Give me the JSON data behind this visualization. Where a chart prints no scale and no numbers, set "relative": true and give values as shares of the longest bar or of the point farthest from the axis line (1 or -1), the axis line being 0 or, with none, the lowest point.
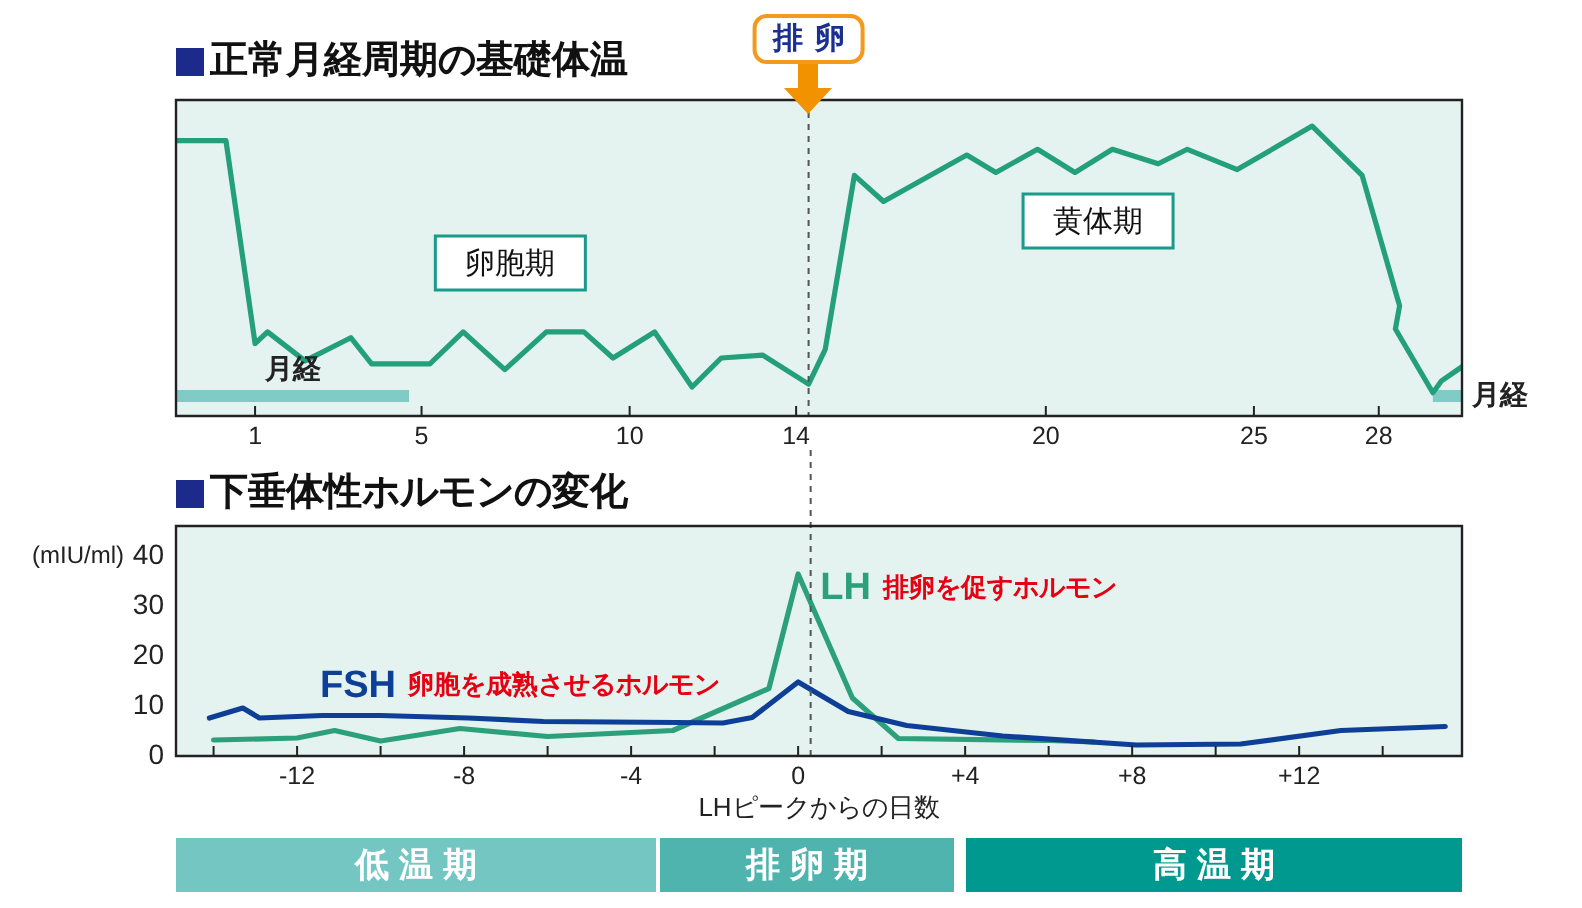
{
  "chart_data": [
    {
      "type": "line",
      "title": "正常月経周期の基礎体温",
      "relative": true,
      "x": [
        -0.9,
        0.3,
        1,
        1.3,
        2.2,
        3.3,
        3.8,
        5.2,
        6,
        7,
        8,
        8.9,
        9.6,
        10.6,
        11.5,
        12.2,
        13.2,
        14.3,
        14.7,
        15.4,
        16.1,
        18.1,
        18.8,
        19.8,
        20.7,
        21.6,
        22.7,
        23.4,
        24.6,
        26.4,
        27.6,
        28.5,
        28.4,
        29.3,
        29.5,
        30
      ],
      "series": [
        {
          "color": "#23a07a",
          "values": [
            0.95,
            0.95,
            0.25,
            0.29,
            0.19,
            0.27,
            0.18,
            0.18,
            0.29,
            0.16,
            0.29,
            0.29,
            0.2,
            0.29,
            0.1,
            0.2,
            0.21,
            0.11,
            0.23,
            0.83,
            0.74,
            0.9,
            0.84,
            0.92,
            0.84,
            0.92,
            0.87,
            0.92,
            0.85,
            1,
            0.83,
            0.38,
            0.3,
            0.08,
            0.12,
            0.17
          ]
        }
      ],
      "xlim": [
        -0.9,
        30
      ],
      "xticks": [
        1,
        5,
        10,
        14,
        20,
        25,
        28
      ],
      "ref_lines": [
        {
          "axis": "x",
          "value": 14.3,
          "label": "排卵"
        }
      ],
      "bands": [
        {
          "axis": "x",
          "from": -0.9,
          "to": 4.7,
          "label": "月経",
          "color": "#80cbc6"
        },
        {
          "axis": "x",
          "from": 29.3,
          "to": 30,
          "label": "月経",
          "color": "#80cbc6"
        }
      ],
      "annotations": [
        "卵胞期",
        "黄体期"
      ]
    },
    {
      "type": "line",
      "title": "下垂体性ホルモンの変化",
      "xlabel": "LHピークからの日数",
      "ylabel": "(mIU/ml)",
      "series": [
        {
          "name": "FSH",
          "color": "#0e3f96",
          "x": [
            -14.1,
            -13.3,
            -12.9,
            -11.4,
            -10,
            -7.9,
            -6.1,
            -2.9,
            -1.8,
            -1.1,
            0,
            1.2,
            2.6,
            4.9,
            8.1,
            10.6,
            13,
            15.5
          ],
          "values": [
            7.6,
            9.6,
            7.6,
            8.1,
            8.1,
            7.6,
            6.9,
            6.7,
            6.6,
            7.7,
            14.8,
            8.9,
            6.1,
            4,
            2.2,
            2.4,
            5.1,
            5.9
          ]
        },
        {
          "name": "LH",
          "color": "#2ba07a",
          "x": [
            -14,
            -12,
            -11.1,
            -10,
            -8.1,
            -6,
            -3,
            -0.7,
            0,
            1.3,
            2.4,
            6,
            7.1
          ],
          "values": [
            3.2,
            3.6,
            5.1,
            3,
            5.5,
            3.9,
            5.1,
            13.5,
            36.4,
            11.6,
            3.5,
            3.1,
            2.8
          ]
        }
      ],
      "xlim": [
        -14.9,
        15.9
      ],
      "xticks": [
        {
          "value": -14,
          "label": null
        },
        -12,
        {
          "value": -10,
          "label": null
        },
        -8,
        {
          "value": -6,
          "label": null
        },
        -4,
        {
          "value": -2,
          "label": null
        },
        0,
        {
          "value": 2,
          "label": null
        },
        {
          "value": 4,
          "label": "+4"
        },
        {
          "value": 6,
          "label": null
        },
        {
          "value": 8,
          "label": "+8"
        },
        {
          "value": 10,
          "label": null
        },
        {
          "value": 12,
          "label": "+12"
        },
        {
          "value": 14,
          "label": null
        }
      ],
      "ylim": [
        0,
        46
      ],
      "yticks": [
        0,
        10,
        20,
        30,
        40
      ],
      "ref_lines": [
        {
          "axis": "x",
          "value": 0.3
        }
      ],
      "annotations": [
        "卵胞を成熟させるホルモン",
        "排卵を促すホルモン",
        "低温期",
        "排卵期",
        "高温期"
      ]
    }
  ]
}
